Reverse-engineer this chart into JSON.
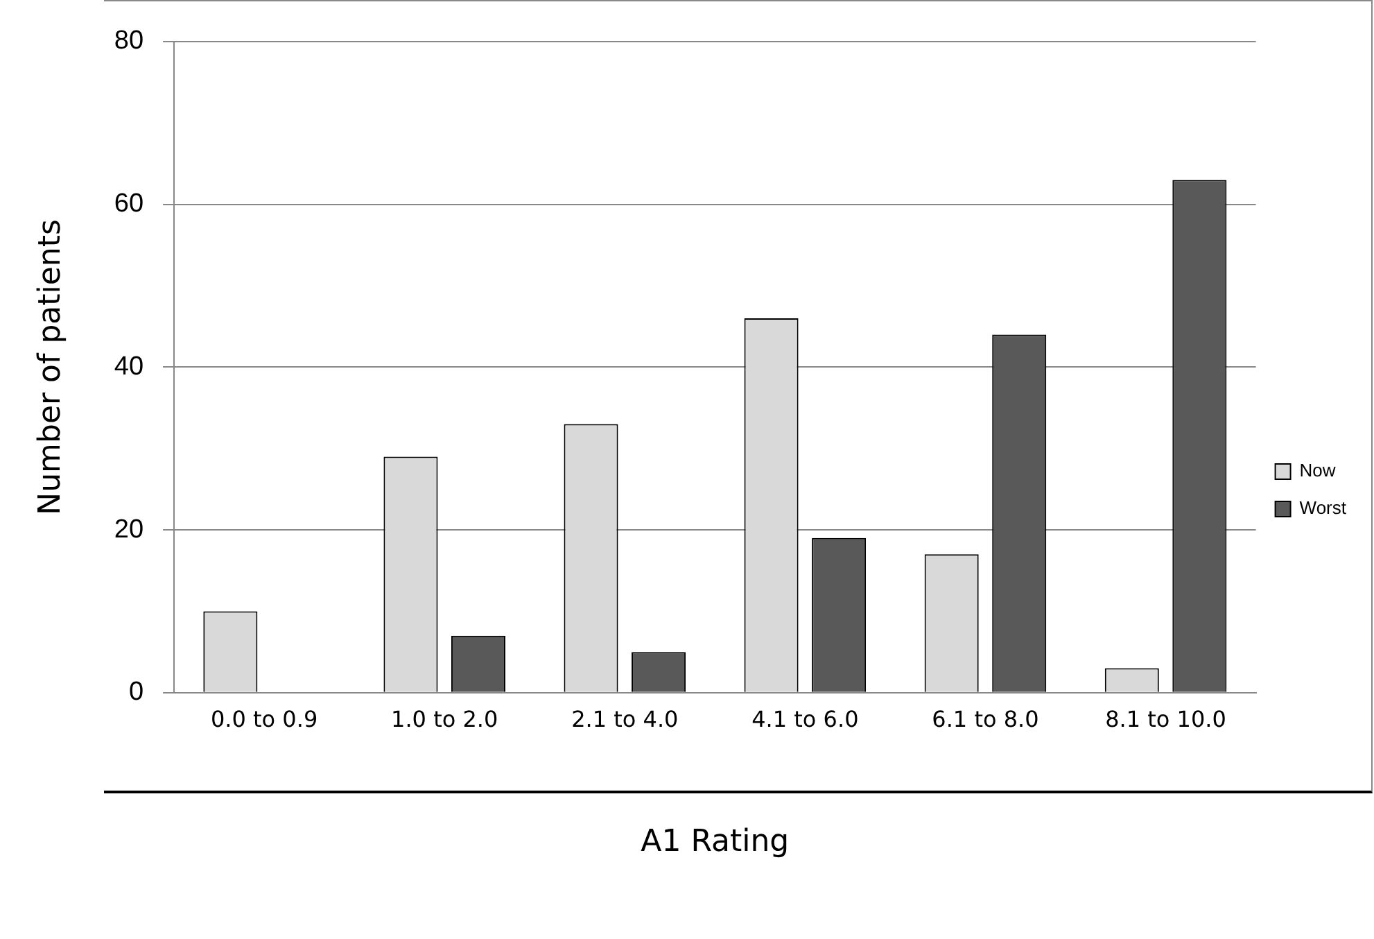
{
  "chart_data": {
    "type": "bar",
    "xlabel": "A1 Rating",
    "ylabel": "Number of patients",
    "categories": [
      "0.0 to 0.9",
      "1.0 to 2.0",
      "2.1 to 4.0",
      "4.1 to 6.0",
      "6.1 to 8.0",
      "8.1 to 10.0"
    ],
    "series": [
      {
        "name": "Now",
        "color": "#d9d9d9",
        "values": [
          10,
          29,
          33,
          46,
          17,
          3
        ]
      },
      {
        "name": "Worst",
        "color": "#595959",
        "values": [
          0,
          7,
          5,
          19,
          44,
          63
        ]
      }
    ],
    "ylim": [
      0,
      80
    ],
    "yticks": [
      0,
      20,
      40,
      60,
      80
    ],
    "grid": "y",
    "legend": "right"
  }
}
